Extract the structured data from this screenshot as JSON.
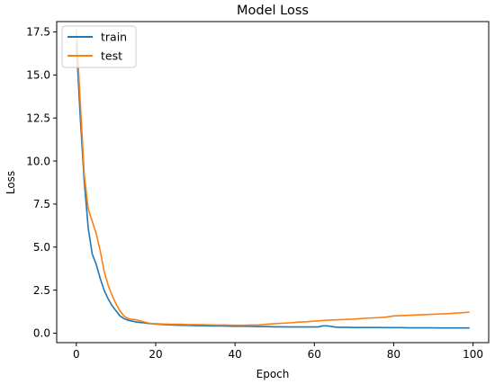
{
  "chart_data": {
    "type": "line",
    "title": "Model Loss",
    "xlabel": "Epoch",
    "ylabel": "Loss",
    "xlim": [
      -4.95,
      103.95
    ],
    "ylim": [
      -0.55,
      18.1
    ],
    "xticks": [
      0,
      20,
      40,
      60,
      80,
      100
    ],
    "yticks": [
      0.0,
      2.5,
      5.0,
      7.5,
      10.0,
      12.5,
      15.0,
      17.5
    ],
    "ytick_labels": [
      "0.0",
      "2.5",
      "5.0",
      "7.5",
      "10.0",
      "12.5",
      "15.0",
      "17.5"
    ],
    "grid": false,
    "legend": {
      "position": "top-left"
    },
    "series": [
      {
        "name": "train",
        "color": "#1f77b4",
        "x": [
          0,
          1,
          2,
          3,
          4,
          5,
          6,
          7,
          8,
          9,
          10,
          11,
          12,
          13,
          14,
          15,
          16,
          17,
          18,
          19,
          20,
          22,
          24,
          26,
          28,
          30,
          32,
          34,
          36,
          38,
          40,
          42,
          44,
          46,
          48,
          50,
          52,
          54,
          56,
          58,
          60,
          61,
          62,
          63,
          64,
          65,
          66,
          68,
          70,
          72,
          74,
          76,
          78,
          80,
          82,
          84,
          86,
          88,
          90,
          92,
          94,
          96,
          98,
          99
        ],
        "y": [
          16.8,
          12.5,
          8.8,
          6.1,
          4.6,
          4.0,
          3.2,
          2.5,
          2.0,
          1.6,
          1.3,
          1.0,
          0.85,
          0.75,
          0.7,
          0.65,
          0.62,
          0.6,
          0.57,
          0.55,
          0.53,
          0.5,
          0.48,
          0.46,
          0.45,
          0.44,
          0.43,
          0.42,
          0.42,
          0.41,
          0.4,
          0.4,
          0.39,
          0.38,
          0.38,
          0.37,
          0.37,
          0.36,
          0.36,
          0.36,
          0.36,
          0.36,
          0.42,
          0.43,
          0.4,
          0.36,
          0.34,
          0.34,
          0.33,
          0.33,
          0.33,
          0.33,
          0.32,
          0.32,
          0.32,
          0.31,
          0.31,
          0.31,
          0.31,
          0.3,
          0.3,
          0.3,
          0.3,
          0.3
        ]
      },
      {
        "name": "test",
        "color": "#ff7f0e",
        "x": [
          0,
          1,
          2,
          3,
          4,
          5,
          6,
          7,
          8,
          9,
          10,
          11,
          12,
          13,
          14,
          15,
          16,
          17,
          18,
          19,
          20,
          22,
          24,
          26,
          28,
          30,
          32,
          34,
          36,
          38,
          40,
          42,
          44,
          46,
          48,
          50,
          52,
          54,
          56,
          58,
          60,
          62,
          64,
          66,
          68,
          70,
          72,
          74,
          76,
          78,
          80,
          82,
          84,
          86,
          88,
          90,
          92,
          94,
          96,
          98,
          99
        ],
        "y": [
          17.6,
          13.4,
          9.2,
          7.2,
          6.5,
          5.8,
          4.8,
          3.6,
          2.8,
          2.2,
          1.7,
          1.3,
          1.0,
          0.85,
          0.8,
          0.78,
          0.72,
          0.66,
          0.6,
          0.56,
          0.55,
          0.53,
          0.52,
          0.52,
          0.5,
          0.5,
          0.49,
          0.48,
          0.47,
          0.47,
          0.46,
          0.46,
          0.47,
          0.48,
          0.52,
          0.55,
          0.58,
          0.6,
          0.64,
          0.66,
          0.7,
          0.73,
          0.76,
          0.78,
          0.8,
          0.82,
          0.85,
          0.88,
          0.9,
          0.93,
          1.0,
          1.02,
          1.04,
          1.06,
          1.08,
          1.1,
          1.12,
          1.14,
          1.17,
          1.2,
          1.22
        ]
      }
    ]
  }
}
